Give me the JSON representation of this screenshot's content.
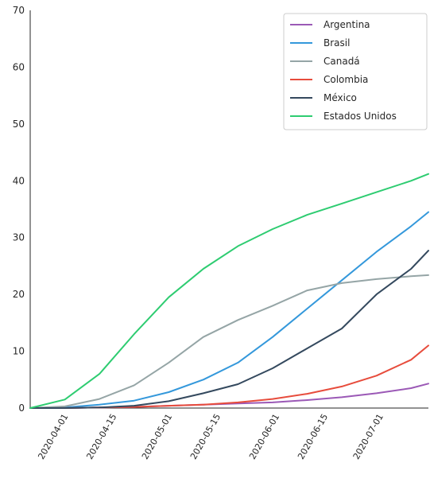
{
  "chart_data": {
    "type": "line",
    "title": "",
    "xlabel": "",
    "ylabel": "",
    "x": [
      "2020-03-21",
      "2020-03-31",
      "2020-04-10",
      "2020-04-20",
      "2020-04-30",
      "2020-05-10",
      "2020-05-20",
      "2020-05-30",
      "2020-06-09",
      "2020-06-19",
      "2020-06-29",
      "2020-07-09",
      "2020-07-14"
    ],
    "xlim": [
      "2020-03-21",
      "2020-07-14"
    ],
    "x_ticks": [
      "2020-04-01",
      "2020-04-15",
      "2020-05-01",
      "2020-05-15",
      "2020-06-01",
      "2020-06-15",
      "2020-07-01"
    ],
    "ylim": [
      0,
      70
    ],
    "y_ticks": [
      0,
      10,
      20,
      30,
      40,
      50,
      60,
      70
    ],
    "grid": false,
    "legend_position": "upper right",
    "series": [
      {
        "name": "Argentina",
        "color": "#9b59b6",
        "values": [
          0.0,
          0.0,
          0.1,
          0.2,
          0.4,
          0.6,
          0.8,
          1.0,
          1.4,
          1.9,
          2.6,
          3.5,
          4.3
        ]
      },
      {
        "name": "Brasil",
        "color": "#3498db",
        "values": [
          0.0,
          0.1,
          0.6,
          1.3,
          2.8,
          5.0,
          8.0,
          12.5,
          17.5,
          22.5,
          27.5,
          32.0,
          34.5
        ]
      },
      {
        "name": "Canadá",
        "color": "#95a5a6",
        "values": [
          0.0,
          0.3,
          1.6,
          4.0,
          8.0,
          12.5,
          15.5,
          18.0,
          20.7,
          22.0,
          22.7,
          23.2,
          23.4
        ]
      },
      {
        "name": "Colombia",
        "color": "#e74c3c",
        "values": [
          0.0,
          0.0,
          0.1,
          0.2,
          0.4,
          0.6,
          1.0,
          1.6,
          2.5,
          3.8,
          5.7,
          8.5,
          11.0
        ]
      },
      {
        "name": "México",
        "color": "#34495e",
        "values": [
          0.0,
          0.0,
          0.1,
          0.4,
          1.2,
          2.6,
          4.2,
          7.0,
          10.5,
          14.0,
          20.0,
          24.5,
          27.7
        ]
      },
      {
        "name": "Estados Unidos",
        "color": "#2ecc71",
        "values": [
          0.0,
          1.5,
          6.0,
          13.0,
          19.5,
          24.5,
          28.5,
          31.5,
          34.0,
          36.0,
          38.0,
          40.0,
          41.2
        ]
      }
    ]
  }
}
